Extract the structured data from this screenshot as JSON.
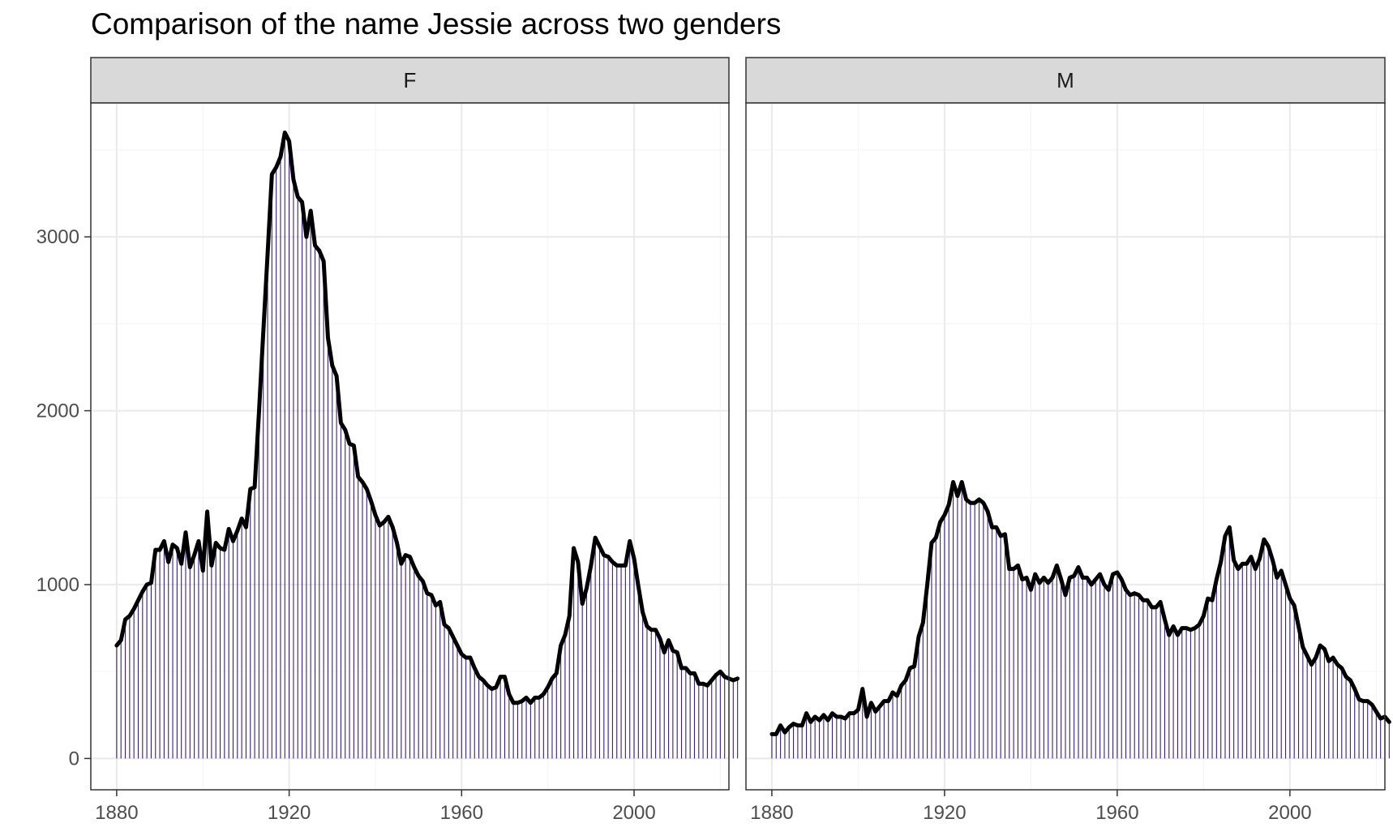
{
  "chart_data": {
    "type": "bar",
    "title": "Comparison of the name Jessie across two genders",
    "xlabel": "",
    "ylabel": "",
    "xlim": [
      1874,
      2022
    ],
    "ylim": [
      -180,
      3770
    ],
    "x_breaks": [
      1880,
      1920,
      1960,
      2000
    ],
    "y_breaks": [
      0,
      1000,
      2000,
      3000
    ],
    "grid": true,
    "legend": "none",
    "facets": [
      {
        "name": "F",
        "x_start": 1880,
        "values": [
          650,
          680,
          800,
          820,
          860,
          910,
          960,
          1000,
          1010,
          1200,
          1200,
          1250,
          1130,
          1230,
          1210,
          1120,
          1300,
          1100,
          1170,
          1250,
          1080,
          1420,
          1110,
          1240,
          1210,
          1200,
          1320,
          1250,
          1310,
          1380,
          1330,
          1550,
          1560,
          1990,
          2450,
          2900,
          3360,
          3400,
          3460,
          3600,
          3550,
          3330,
          3230,
          3200,
          3000,
          3150,
          2950,
          2920,
          2860,
          2420,
          2260,
          2200,
          1930,
          1890,
          1810,
          1800,
          1620,
          1590,
          1550,
          1480,
          1400,
          1340,
          1360,
          1390,
          1330,
          1240,
          1120,
          1170,
          1160,
          1100,
          1050,
          1020,
          950,
          940,
          880,
          900,
          770,
          750,
          700,
          650,
          600,
          580,
          580,
          520,
          470,
          450,
          420,
          400,
          410,
          470,
          470,
          370,
          320,
          320,
          330,
          350,
          320,
          350,
          350,
          370,
          410,
          460,
          490,
          650,
          710,
          820,
          1210,
          1130,
          890,
          980,
          1110,
          1270,
          1220,
          1170,
          1160,
          1130,
          1110,
          1110,
          1110,
          1250,
          1150,
          990,
          840,
          760,
          740,
          740,
          690,
          610,
          680,
          620,
          610,
          520,
          520,
          490,
          490,
          430,
          430,
          420,
          450,
          480,
          500,
          470,
          460,
          450,
          460
        ]
      },
      {
        "name": "M",
        "x_start": 1880,
        "values": [
          140,
          140,
          190,
          150,
          180,
          200,
          190,
          190,
          260,
          210,
          240,
          220,
          250,
          220,
          260,
          240,
          240,
          230,
          260,
          260,
          280,
          400,
          240,
          320,
          270,
          300,
          330,
          330,
          380,
          360,
          420,
          450,
          520,
          530,
          700,
          780,
          1000,
          1240,
          1270,
          1360,
          1400,
          1460,
          1590,
          1510,
          1590,
          1490,
          1470,
          1470,
          1490,
          1470,
          1420,
          1330,
          1330,
          1280,
          1290,
          1090,
          1090,
          1110,
          1030,
          1040,
          970,
          1060,
          1010,
          1040,
          1010,
          1040,
          1110,
          1030,
          940,
          1040,
          1050,
          1100,
          1040,
          1040,
          1000,
          1030,
          1060,
          1000,
          970,
          1060,
          1070,
          1030,
          970,
          940,
          950,
          940,
          910,
          910,
          870,
          870,
          900,
          800,
          710,
          760,
          710,
          750,
          750,
          740,
          750,
          770,
          820,
          920,
          910,
          1030,
          1130,
          1280,
          1330,
          1140,
          1090,
          1120,
          1120,
          1160,
          1090,
          1150,
          1260,
          1220,
          1140,
          1040,
          1080,
          1000,
          920,
          880,
          760,
          640,
          590,
          540,
          580,
          650,
          630,
          560,
          580,
          540,
          520,
          470,
          450,
          400,
          340,
          330,
          330,
          310,
          270,
          230,
          240,
          210
        ]
      }
    ]
  },
  "colors": {
    "bar_stroke": "#3b1f7a",
    "line": "#000000",
    "panel_border": "#333333",
    "strip_fill": "#d9d9d9",
    "grid_major": "#ebebeb",
    "grid_minor": "#f5f5f5",
    "axis_text": "#4d4d4d",
    "title": "#000000"
  }
}
